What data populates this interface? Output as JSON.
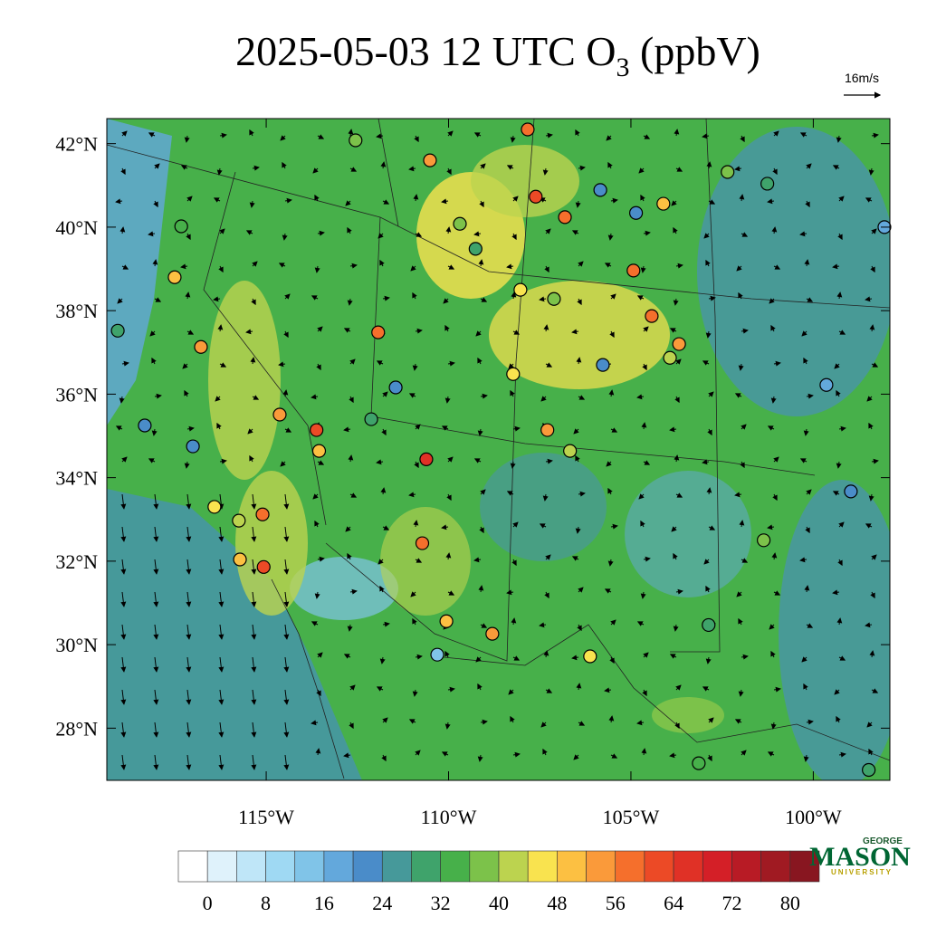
{
  "title": {
    "text": "2025-05-03 12 UTC O",
    "subscript": "3",
    "suffix": " (ppbV)"
  },
  "wind_reference": "16m/s",
  "map": {
    "lon_range": [
      -119.37,
      -97.9
    ],
    "lat_range": [
      26.75,
      42.6
    ],
    "lat_ticks": [
      {
        "value": 42,
        "label": "42°N"
      },
      {
        "value": 40,
        "label": "40°N"
      },
      {
        "value": 38,
        "label": "38°N"
      },
      {
        "value": 36,
        "label": "36°N"
      },
      {
        "value": 34,
        "label": "34°N"
      },
      {
        "value": 32,
        "label": "32°N"
      },
      {
        "value": 30,
        "label": "30°N"
      },
      {
        "value": 28,
        "label": "28°N"
      }
    ],
    "lon_ticks": [
      {
        "value": -115,
        "label": "115°W"
      },
      {
        "value": -110,
        "label": "110°W"
      },
      {
        "value": -105,
        "label": "105°W"
      },
      {
        "value": -100,
        "label": "100°W"
      }
    ],
    "stations": [
      {
        "lon": -107.83,
        "lat": 42.34,
        "value": 58
      },
      {
        "lon": -107.61,
        "lat": 40.73,
        "value": 60
      },
      {
        "lon": -106.81,
        "lat": 40.24,
        "value": 56
      },
      {
        "lon": -104.93,
        "lat": 38.96,
        "value": 58
      },
      {
        "lon": -104.11,
        "lat": 40.56,
        "value": 48
      },
      {
        "lon": -104.86,
        "lat": 40.34,
        "value": 20
      },
      {
        "lon": -117.51,
        "lat": 38.8,
        "value": 48
      },
      {
        "lon": -116.79,
        "lat": 37.13,
        "value": 54
      },
      {
        "lon": -111.93,
        "lat": 37.48,
        "value": 58
      },
      {
        "lon": -113.62,
        "lat": 35.14,
        "value": 60
      },
      {
        "lon": -113.55,
        "lat": 34.64,
        "value": 48
      },
      {
        "lon": -110.61,
        "lat": 34.44,
        "value": 64
      },
      {
        "lon": -115.1,
        "lat": 33.12,
        "value": 58
      },
      {
        "lon": -115.07,
        "lat": 31.86,
        "value": 62
      },
      {
        "lon": -115.72,
        "lat": 32.04,
        "value": 48
      },
      {
        "lon": -110.72,
        "lat": 32.43,
        "value": 56
      },
      {
        "lon": -110.06,
        "lat": 30.56,
        "value": 50
      },
      {
        "lon": -108.8,
        "lat": 30.26,
        "value": 54
      },
      {
        "lon": -110.31,
        "lat": 29.76,
        "value": 14
      },
      {
        "lon": -114.63,
        "lat": 35.51,
        "value": 52
      },
      {
        "lon": -104.43,
        "lat": 37.87,
        "value": 56
      },
      {
        "lon": -103.68,
        "lat": 37.2,
        "value": 54
      },
      {
        "lon": -107.29,
        "lat": 35.14,
        "value": 52
      },
      {
        "lon": -108.23,
        "lat": 36.48,
        "value": 46
      },
      {
        "lon": -105.77,
        "lat": 36.7,
        "value": 20
      },
      {
        "lon": -99.64,
        "lat": 36.22,
        "value": 18
      },
      {
        "lon": -98.05,
        "lat": 40.0,
        "value": 18
      },
      {
        "lon": -101.36,
        "lat": 32.5,
        "value": 36
      },
      {
        "lon": -106.12,
        "lat": 29.72,
        "value": 44
      },
      {
        "lon": -117.33,
        "lat": 40.02,
        "value": 32
      },
      {
        "lon": -119.07,
        "lat": 37.52,
        "value": 28
      },
      {
        "lon": -118.33,
        "lat": 35.25,
        "value": 22
      },
      {
        "lon": -117.01,
        "lat": 34.75,
        "value": 20
      },
      {
        "lon": -116.42,
        "lat": 33.3,
        "value": 44
      },
      {
        "lon": -115.75,
        "lat": 32.97,
        "value": 40
      },
      {
        "lon": -112.12,
        "lat": 35.4,
        "value": 28
      },
      {
        "lon": -111.45,
        "lat": 36.16,
        "value": 22
      },
      {
        "lon": -109.69,
        "lat": 40.08,
        "value": 36
      },
      {
        "lon": -109.26,
        "lat": 39.48,
        "value": 28
      },
      {
        "lon": -107.11,
        "lat": 38.28,
        "value": 36
      },
      {
        "lon": -103.93,
        "lat": 36.87,
        "value": 40
      },
      {
        "lon": -106.67,
        "lat": 34.64,
        "value": 40
      },
      {
        "lon": -108.03,
        "lat": 38.5,
        "value": 44
      },
      {
        "lon": -102.35,
        "lat": 41.32,
        "value": 36
      },
      {
        "lon": -101.26,
        "lat": 41.04,
        "value": 30
      },
      {
        "lon": -98.97,
        "lat": 33.67,
        "value": 22
      },
      {
        "lon": -102.87,
        "lat": 30.47,
        "value": 28
      },
      {
        "lon": -103.14,
        "lat": 27.16,
        "value": 34
      },
      {
        "lon": -98.48,
        "lat": 27.0,
        "value": 30
      },
      {
        "lon": -110.51,
        "lat": 41.6,
        "value": 52
      },
      {
        "lon": -112.55,
        "lat": 42.08,
        "value": 36
      },
      {
        "lon": -105.84,
        "lat": 40.89,
        "value": 20
      }
    ]
  },
  "colorbar": {
    "levels": [
      0,
      4,
      8,
      12,
      16,
      20,
      24,
      28,
      32,
      36,
      40,
      44,
      48,
      52,
      56,
      60,
      64,
      68,
      72,
      76,
      80
    ],
    "ticks": [
      0,
      8,
      16,
      24,
      32,
      40,
      48,
      56,
      64,
      72,
      80
    ],
    "colors": [
      "#ffffff",
      "#dff2fb",
      "#bfe6f8",
      "#9fd9f3",
      "#80c4e8",
      "#63a8dc",
      "#4a8cc9",
      "#46999a",
      "#3fa36b",
      "#47b04a",
      "#7cc24a",
      "#bcd34f",
      "#f9e34f",
      "#fcc042",
      "#fa9a3a",
      "#f56f2c",
      "#ec4a26",
      "#e03126",
      "#d41f27",
      "#b81b25",
      "#a01a22",
      "#881620"
    ]
  },
  "logo": {
    "top": "GEORGE",
    "name": "MASON",
    "bottom": "UNIVERSITY"
  }
}
